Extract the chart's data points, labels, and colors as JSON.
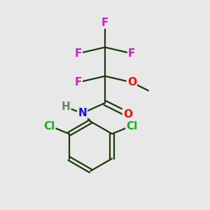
{
  "background_color": "#e8e8e8",
  "bond_color": "#1a3a0a",
  "bond_width": 1.6,
  "atom_colors": {
    "F": "#cc22cc",
    "O": "#ee1100",
    "N": "#1111ee",
    "H": "#668866",
    "Cl": "#22aa22",
    "C": "#1a3a0a"
  },
  "font_size": 11,
  "font_size_cl": 11
}
